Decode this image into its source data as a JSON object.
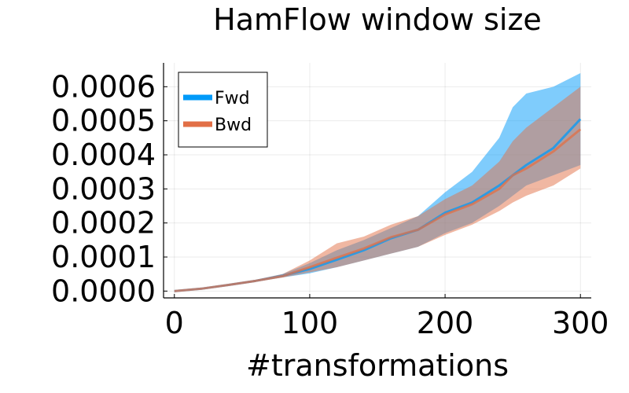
{
  "chart_data": {
    "type": "line",
    "title": "HamFlow window size",
    "xlabel": "#transformations",
    "ylabel": "",
    "xlim": [
      -8,
      308
    ],
    "ylim": [
      -2e-05,
      0.00067
    ],
    "xticks": [
      0,
      100,
      200,
      300
    ],
    "xtick_labels": [
      "0",
      "100",
      "200",
      "300"
    ],
    "yticks": [
      0.0,
      0.0001,
      0.0002,
      0.0003,
      0.0004,
      0.0005,
      0.0006
    ],
    "ytick_labels": [
      "0.0000",
      "0.0001",
      "0.0002",
      "0.0003",
      "0.0004",
      "0.0005",
      "0.0006"
    ],
    "grid": true,
    "legend_position": "top-left",
    "x": [
      0,
      20,
      40,
      60,
      80,
      100,
      120,
      140,
      160,
      180,
      200,
      220,
      240,
      250,
      260,
      280,
      300
    ],
    "series": [
      {
        "name": "Fwd",
        "color": "#009af9",
        "values": [
          0.0,
          7e-06,
          1.8e-05,
          3e-05,
          4.5e-05,
          6.5e-05,
          9.2e-05,
          0.00012,
          0.000155,
          0.00018,
          0.00023,
          0.00026,
          0.00031,
          0.00034,
          0.00037,
          0.00042,
          0.000505
        ],
        "lower": [
          0.0,
          6e-06,
          1.6e-05,
          2.7e-05,
          4e-05,
          5.2e-05,
          7e-05,
          9e-05,
          0.00011,
          0.00013,
          0.00017,
          0.0002,
          0.00025,
          0.00028,
          0.00031,
          0.00034,
          0.00037
        ],
        "upper": [
          0.0,
          8e-06,
          2e-05,
          3.3e-05,
          5e-05,
          8.2e-05,
          0.00012,
          0.00015,
          0.000185,
          0.00022,
          0.00029,
          0.00035,
          0.00045,
          0.00054,
          0.00058,
          0.0006,
          0.00064
        ]
      },
      {
        "name": "Bwd",
        "color": "#e26f46",
        "values": [
          0.0,
          7e-06,
          1.8e-05,
          3e-05,
          4.4e-05,
          7e-05,
          9.8e-05,
          0.000125,
          0.000158,
          0.00018,
          0.000225,
          0.000255,
          0.0003,
          0.00034,
          0.00036,
          0.00041,
          0.000475
        ],
        "lower": [
          0.0,
          6e-06,
          1.6e-05,
          2.7e-05,
          4e-05,
          5.5e-05,
          7e-05,
          9e-05,
          0.00011,
          0.00013,
          0.000165,
          0.000195,
          0.000235,
          0.00026,
          0.00028,
          0.00031,
          0.00036
        ],
        "upper": [
          0.0,
          8e-06,
          2e-05,
          3.3e-05,
          5e-05,
          9e-05,
          0.00014,
          0.00016,
          0.000195,
          0.00022,
          0.00027,
          0.00031,
          0.00038,
          0.00044,
          0.00048,
          0.00054,
          0.0006
        ]
      }
    ]
  }
}
